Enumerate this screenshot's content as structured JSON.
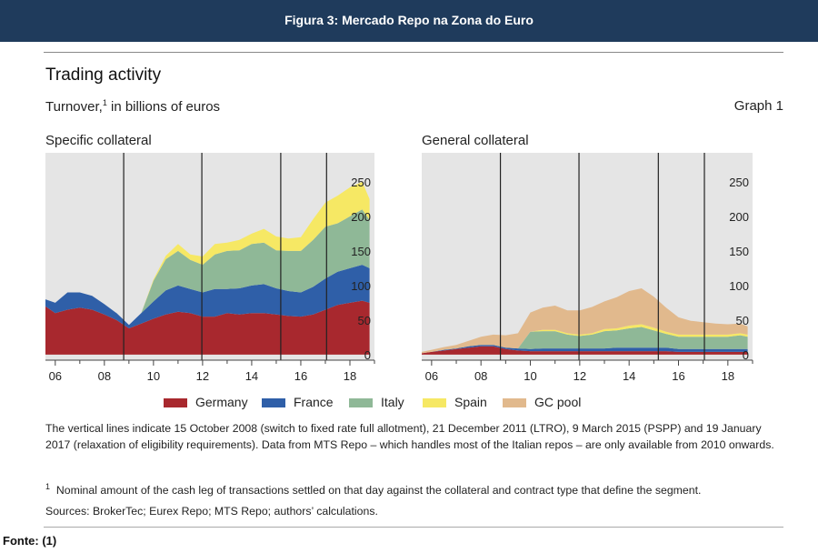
{
  "banner": {
    "title": "Figura 3: Mercado Repo na Zona do Euro"
  },
  "header": {
    "title": "Trading activity",
    "subtitle_main": "Turnover,",
    "subtitle_sup": "1",
    "subtitle_rest": " in billions of euros",
    "graph_label": "Graph 1"
  },
  "chart_data": [
    {
      "type": "area",
      "title": "Specific collateral",
      "x_tick_labels": [
        "06",
        "08",
        "10",
        "12",
        "14",
        "16",
        "18"
      ],
      "x_tick_years": [
        2006,
        2008,
        2010,
        2012,
        2014,
        2016,
        2018
      ],
      "xlim": [
        2005.6,
        2019.0
      ],
      "y_tick_labels": [
        "0",
        "50",
        "100",
        "150",
        "200",
        "250"
      ],
      "y_ticks": [
        0,
        50,
        100,
        150,
        200,
        250
      ],
      "ylim": [
        -8,
        292
      ],
      "y_axis_side": "right",
      "stacked": true,
      "vertical_lines": [
        "2008-10-15",
        "2011-12-21",
        "2015-03-09",
        "2017-01-19"
      ],
      "x": [
        2005.6,
        2006.0,
        2006.5,
        2007.0,
        2007.5,
        2008.0,
        2008.5,
        2009.0,
        2009.5,
        2010.0,
        2010.5,
        2011.0,
        2011.5,
        2012.0,
        2012.5,
        2013.0,
        2013.5,
        2014.0,
        2014.5,
        2015.0,
        2015.5,
        2016.0,
        2016.5,
        2017.0,
        2017.5,
        2018.0,
        2018.5,
        2018.8
      ],
      "series": [
        {
          "name": "Germany",
          "color": "#a8282e",
          "values": [
            70,
            60,
            65,
            68,
            65,
            58,
            50,
            38,
            45,
            52,
            58,
            62,
            60,
            55,
            55,
            60,
            58,
            60,
            60,
            58,
            56,
            55,
            58,
            65,
            72,
            75,
            78,
            75
          ]
        },
        {
          "name": "France",
          "color": "#2f5fa8",
          "values": [
            10,
            15,
            25,
            22,
            20,
            15,
            10,
            5,
            15,
            25,
            35,
            38,
            35,
            35,
            40,
            35,
            38,
            40,
            42,
            38,
            36,
            35,
            40,
            45,
            48,
            50,
            52,
            50
          ]
        },
        {
          "name": "Italy",
          "color": "#8fb897",
          "values": [
            0,
            0,
            0,
            0,
            0,
            0,
            0,
            0,
            0,
            30,
            45,
            50,
            42,
            40,
            50,
            55,
            55,
            60,
            60,
            55,
            58,
            60,
            68,
            75,
            70,
            75,
            80,
            70
          ]
        },
        {
          "name": "Spain",
          "color": "#f6e864",
          "values": [
            0,
            0,
            0,
            0,
            0,
            0,
            0,
            0,
            0,
            2,
            5,
            10,
            8,
            12,
            15,
            12,
            15,
            15,
            20,
            20,
            18,
            20,
            30,
            35,
            40,
            42,
            40,
            30
          ]
        },
        {
          "name": "GC pool",
          "color": "#e1b98d",
          "values": [
            0,
            0,
            0,
            0,
            0,
            0,
            0,
            0,
            0,
            0,
            0,
            0,
            0,
            0,
            0,
            0,
            0,
            0,
            0,
            0,
            0,
            0,
            0,
            0,
            0,
            0,
            0,
            0
          ]
        }
      ]
    },
    {
      "type": "area",
      "title": "General collateral",
      "x_tick_labels": [
        "06",
        "08",
        "10",
        "12",
        "14",
        "16",
        "18"
      ],
      "x_tick_years": [
        2006,
        2008,
        2010,
        2012,
        2014,
        2016,
        2018
      ],
      "xlim": [
        2005.6,
        2019.0
      ],
      "y_tick_labels": [
        "0",
        "50",
        "100",
        "150",
        "200",
        "250"
      ],
      "y_ticks": [
        0,
        50,
        100,
        150,
        200,
        250
      ],
      "ylim": [
        -8,
        292
      ],
      "y_axis_side": "right",
      "stacked": true,
      "vertical_lines": [
        "2008-10-15",
        "2011-12-21",
        "2015-03-09",
        "2017-01-19"
      ],
      "x": [
        2005.6,
        2006.0,
        2006.5,
        2007.0,
        2007.5,
        2008.0,
        2008.5,
        2009.0,
        2009.5,
        2010.0,
        2010.5,
        2011.0,
        2011.5,
        2012.0,
        2012.5,
        2013.0,
        2013.5,
        2014.0,
        2014.5,
        2015.0,
        2015.5,
        2016.0,
        2016.5,
        2017.0,
        2017.5,
        2018.0,
        2018.5,
        2018.8
      ],
      "series": [
        {
          "name": "Germany",
          "color": "#a8282e",
          "values": [
            2,
            4,
            6,
            8,
            10,
            12,
            12,
            8,
            6,
            5,
            5,
            5,
            5,
            5,
            5,
            5,
            5,
            5,
            5,
            5,
            5,
            4,
            4,
            4,
            4,
            4,
            4,
            4
          ]
        },
        {
          "name": "France",
          "color": "#2f5fa8",
          "values": [
            0,
            0,
            1,
            1,
            2,
            2,
            2,
            2,
            3,
            3,
            4,
            4,
            4,
            4,
            4,
            4,
            5,
            5,
            5,
            5,
            5,
            4,
            4,
            4,
            4,
            4,
            4,
            4
          ]
        },
        {
          "name": "Italy",
          "color": "#8fb897",
          "values": [
            0,
            0,
            0,
            0,
            0,
            0,
            0,
            0,
            0,
            25,
            25,
            25,
            20,
            18,
            20,
            25,
            25,
            28,
            30,
            25,
            20,
            18,
            18,
            18,
            18,
            18,
            20,
            18
          ]
        },
        {
          "name": "Spain",
          "color": "#f6e864",
          "values": [
            0,
            0,
            0,
            0,
            0,
            0,
            0,
            0,
            0,
            0,
            2,
            2,
            2,
            2,
            2,
            3,
            3,
            4,
            4,
            4,
            3,
            3,
            3,
            3,
            3,
            3,
            3,
            3
          ]
        },
        {
          "name": "GC pool",
          "color": "#e1b98d",
          "values": [
            2,
            3,
            4,
            5,
            8,
            12,
            15,
            18,
            22,
            28,
            32,
            35,
            33,
            35,
            38,
            40,
            45,
            50,
            52,
            45,
            35,
            25,
            20,
            18,
            16,
            15,
            14,
            12
          ]
        }
      ]
    }
  ],
  "legend": [
    {
      "name": "Germany",
      "color": "#a8282e"
    },
    {
      "name": "France",
      "color": "#2f5fa8"
    },
    {
      "name": "Italy",
      "color": "#8fb897"
    },
    {
      "name": "Spain",
      "color": "#f6e864"
    },
    {
      "name": "GC pool",
      "color": "#e1b98d"
    }
  ],
  "notes": {
    "main": "The vertical lines indicate 15 October 2008 (switch to fixed rate full allotment), 21 December 2011 (LTRO), 9 March 2015 (PSPP) and 19 January 2017 (relaxation of eligibility requirements). Data from MTS Repo – which handles most of the Italian repos – are only available from 2010 onwards.",
    "footnote_mark": "1",
    "footnote": "Nominal amount of the cash leg of transactions settled on that day against the collateral and contract type that define the segment.",
    "sources": "Sources: BrokerTec; Eurex Repo; MTS Repo; authors’ calculations."
  },
  "footer": {
    "fonte": "Fonte: (1)"
  }
}
